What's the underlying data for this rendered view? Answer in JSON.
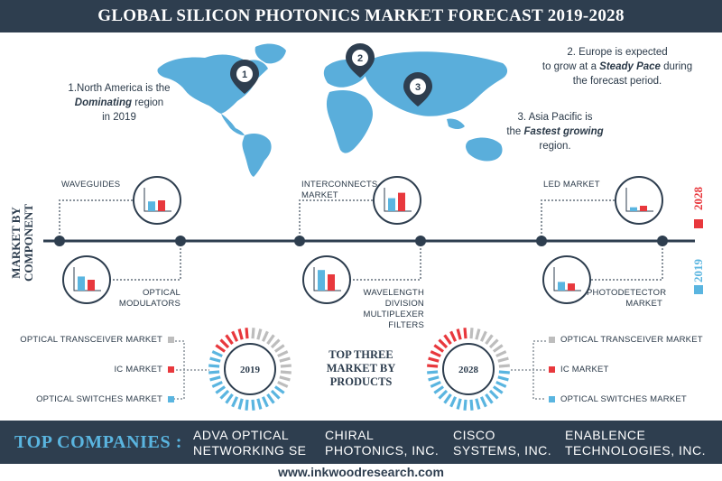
{
  "title": "GLOBAL SILICON PHOTONICS MARKET FORECAST 2019-2028",
  "regions": [
    {
      "number": "1",
      "line1": "1.North America is the",
      "strong": "Dominating",
      "after": " region",
      "line3": "in 2019"
    },
    {
      "number": "2",
      "line1": "2. Europe is expected",
      "before": "to grow at a ",
      "strong": "Steady Pace",
      "after": " during",
      "line3": "the forecast period."
    },
    {
      "number": "3",
      "line1": "3. Asia Pacific is",
      "before": "the ",
      "strong": "Fastest growing",
      "line3": "region."
    }
  ],
  "market_by_component_label": [
    "MARKET BY",
    "COMPONENT"
  ],
  "colors": {
    "dark": "#2e3e4f",
    "blue": "#5ab5e0",
    "red": "#e8383d",
    "gray": "#bdbdbd",
    "map": "#5aaedb"
  },
  "legend": {
    "year_2028": "2028",
    "year_2019": "2019"
  },
  "components": [
    {
      "label": "WAVEGUIDES"
    },
    {
      "label": "OPTICAL MODULATORS",
      "lines": [
        "OPTICAL",
        "MODULATORS"
      ]
    },
    {
      "label": "INTERCONNECTS MARKET",
      "lines": [
        "INTERCONNECTS",
        "MARKET"
      ]
    },
    {
      "label": "WAVELENGTH DIVISION MULTIPLEXER FILTERS",
      "lines": [
        "WAVELENGTH",
        "DIVISION",
        "MULTIPLEXER FILTERS"
      ]
    },
    {
      "label": "LED MARKET"
    },
    {
      "label": "PHOTODETECTOR MARKET",
      "lines": [
        "PHOTODETECTOR",
        "MARKET"
      ]
    }
  ],
  "chart_data": [
    {
      "type": "bar",
      "title": "WAVEGUIDES",
      "categories": [
        "2019",
        "2028"
      ],
      "values": [
        0.45,
        0.5
      ]
    },
    {
      "type": "bar",
      "title": "OPTICAL MODULATORS",
      "categories": [
        "2019",
        "2028"
      ],
      "values": [
        0.65,
        0.5
      ]
    },
    {
      "type": "bar",
      "title": "INTERCONNECTS MARKET",
      "categories": [
        "2019",
        "2028"
      ],
      "values": [
        0.6,
        0.85
      ]
    },
    {
      "type": "bar",
      "title": "WAVELENGTH DIVISION MULTIPLEXER FILTERS",
      "categories": [
        "2019",
        "2028"
      ],
      "values": [
        0.95,
        0.75
      ]
    },
    {
      "type": "bar",
      "title": "LED MARKET",
      "categories": [
        "2019",
        "2028"
      ],
      "values": [
        0.18,
        0.25
      ]
    },
    {
      "type": "bar",
      "title": "PHOTODETECTOR MARKET",
      "categories": [
        "2019",
        "2028"
      ],
      "values": [
        0.4,
        0.33
      ]
    },
    {
      "type": "pie",
      "title": "2019",
      "categories": [
        "OPTICAL TRANSCEIVER MARKET",
        "IC MARKET",
        "OPTICAL SWITCHES MARKET"
      ],
      "values": [
        0.33,
        0.17,
        0.5
      ]
    },
    {
      "type": "pie",
      "title": "2028",
      "categories": [
        "OPTICAL TRANSCEIVER MARKET",
        "IC MARKET",
        "OPTICAL SWITCHES MARKET"
      ],
      "values": [
        0.25,
        0.25,
        0.5
      ]
    }
  ],
  "products": {
    "center_lines": [
      "TOP THREE",
      "MARKET BY",
      "PRODUCTS"
    ],
    "left_labels": [
      "OPTICAL TRANSCEIVER MARKET",
      "IC MARKET",
      "OPTICAL SWITCHES MARKET"
    ],
    "right_labels": [
      "OPTICAL TRANSCEIVER MARKET",
      "IC MARKET",
      "OPTICAL SWITCHES MARKET"
    ],
    "year_left": "2019",
    "year_right": "2028"
  },
  "top_companies_label": "TOP COMPANIES :",
  "companies": [
    [
      "ADVA OPTICAL",
      "NETWORKING SE"
    ],
    [
      "CHIRAL",
      "PHOTONICS, INC."
    ],
    [
      "CISCO",
      "SYSTEMS, INC."
    ],
    [
      "ENABLENCE",
      "TECHNOLOGIES, INC."
    ]
  ],
  "website": "www.inkwoodresearch.com"
}
